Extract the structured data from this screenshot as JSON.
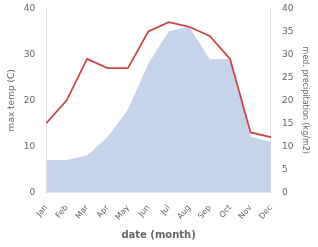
{
  "chart_data": {
    "type": "line",
    "categories": [
      "Jan",
      "Feb",
      "Mar",
      "Apr",
      "May",
      "Jun",
      "Jul",
      "Aug",
      "Sep",
      "Oct",
      "Nov",
      "Dec"
    ],
    "series": [
      {
        "type": "area",
        "axis": "y2",
        "color": "#c5d4ea",
        "values": [
          7,
          7,
          8,
          12,
          18,
          28,
          35,
          36,
          29,
          29,
          12,
          11
        ]
      },
      {
        "type": "line",
        "color": "#cc4444",
        "values": [
          15,
          20,
          29,
          27,
          27,
          35,
          37,
          36,
          34,
          29,
          13,
          12
        ]
      }
    ],
    "xlabel": "date (month)",
    "ylabel": "max temp (C)",
    "y2label": "med. precipitation (kg/m2)",
    "ylim": [
      0,
      40
    ],
    "yticks": [
      0,
      10,
      20,
      30,
      40
    ],
    "y2lim": [
      0,
      40
    ],
    "y2ticks": [
      0,
      5,
      10,
      15,
      20,
      25,
      30,
      35,
      40
    ],
    "grid": false
  }
}
